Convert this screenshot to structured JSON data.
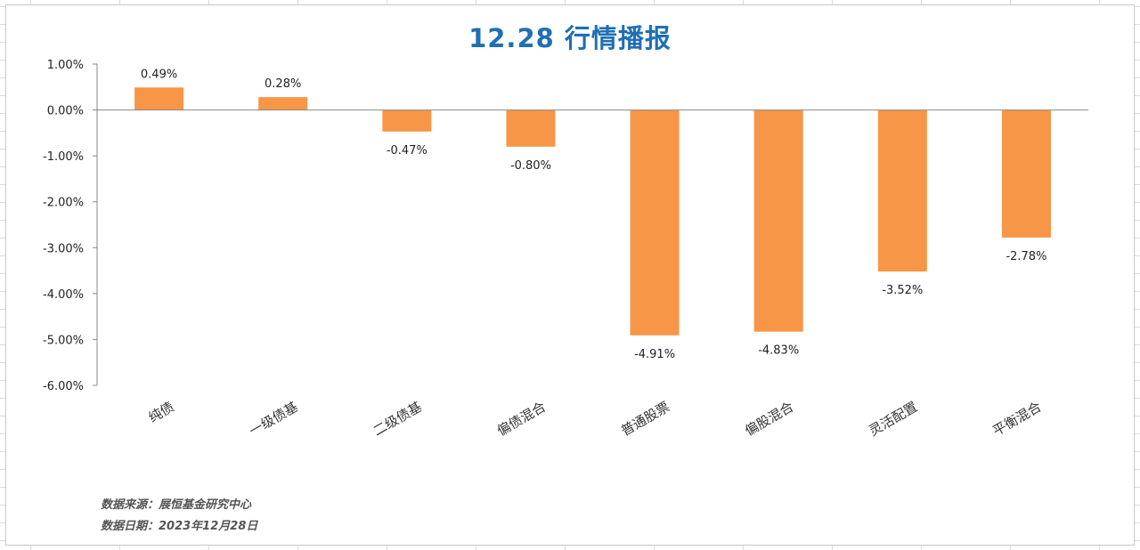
{
  "chart_data": {
    "type": "bar",
    "title": "12.28 行情播报",
    "categories": [
      "纯债",
      "一级债基",
      "二级债基",
      "偏债混合",
      "普通股票",
      "偏股混合",
      "灵活配置",
      "平衡混合"
    ],
    "values": [
      0.49,
      0.28,
      -0.47,
      -0.8,
      -4.91,
      -4.83,
      -3.52,
      -2.78
    ],
    "value_labels": [
      "0.49%",
      "0.28%",
      "-0.47%",
      "-0.80%",
      "-4.91%",
      "-4.83%",
      "-3.52%",
      "-2.78%"
    ],
    "ylim": [
      -6,
      1
    ],
    "yticks": [
      1,
      0,
      -1,
      -2,
      -3,
      -4,
      -5,
      -6
    ],
    "ytick_labels": [
      "1.00%",
      "0.00%",
      "-1.00%",
      "-2.00%",
      "-3.00%",
      "-4.00%",
      "-5.00%",
      "-6.00%"
    ],
    "bar_color": "#f79646",
    "title_color": "#1f6fb5",
    "grid": false,
    "legend": "none"
  },
  "footnotes": {
    "source": "数据来源：展恒基金研究中心",
    "date": "数据日期：2023年12月28日"
  }
}
